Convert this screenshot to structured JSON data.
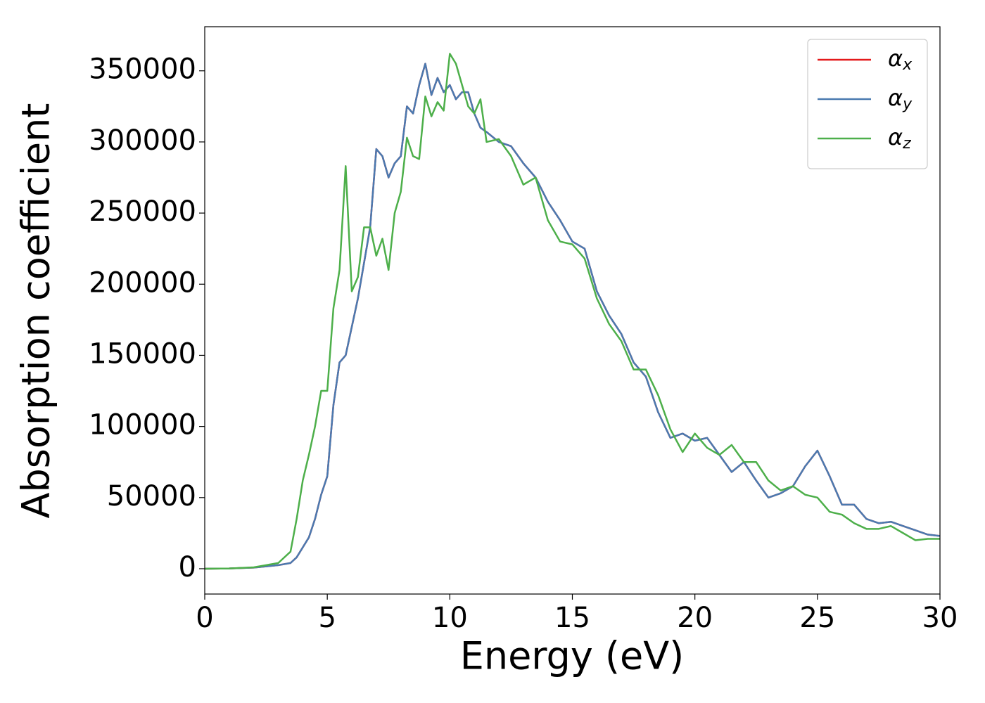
{
  "chart_data": {
    "type": "line",
    "xlabel": "Energy (eV)",
    "ylabel": "Absorption coefficient",
    "x": [
      0,
      1,
      2,
      3,
      3.5,
      3.75,
      4,
      4.25,
      4.5,
      4.75,
      5,
      5.25,
      5.5,
      5.75,
      6,
      6.25,
      6.5,
      6.75,
      7,
      7.25,
      7.5,
      7.75,
      8,
      8.25,
      8.5,
      8.75,
      9,
      9.25,
      9.5,
      9.75,
      10,
      10.25,
      10.5,
      10.75,
      11,
      11.25,
      11.5,
      12,
      12.5,
      13,
      13.5,
      14,
      14.5,
      15,
      15.5,
      16,
      16.5,
      17,
      17.5,
      18,
      18.5,
      19,
      19.5,
      20,
      20.5,
      21,
      21.5,
      22,
      22.5,
      23,
      23.5,
      24,
      24.5,
      25,
      25.5,
      26,
      26.5,
      27,
      27.5,
      28,
      28.5,
      29,
      29.5,
      30
    ],
    "series": [
      {
        "name": "αx",
        "color": "#e41a1c",
        "values": [
          0,
          200,
          800,
          2500,
          4000,
          8000,
          15000,
          22000,
          35000,
          52000,
          65000,
          115000,
          145000,
          150000,
          170000,
          190000,
          215000,
          240000,
          295000,
          290000,
          275000,
          285000,
          290000,
          325000,
          320000,
          340000,
          355000,
          333000,
          345000,
          335000,
          340000,
          330000,
          335000,
          335000,
          320000,
          310000,
          307000,
          300000,
          297000,
          285000,
          275000,
          258000,
          245000,
          230000,
          225000,
          195000,
          178000,
          165000,
          145000,
          135000,
          110000,
          92000,
          95000,
          90000,
          92000,
          80000,
          68000,
          75000,
          62000,
          50000,
          53000,
          58000,
          72000,
          83000,
          65000,
          45000,
          45000,
          35000,
          32000,
          33000,
          30000,
          27000,
          24000,
          23000
        ]
      },
      {
        "name": "αy",
        "color": "#4a7ab0",
        "values": [
          0,
          200,
          800,
          2500,
          4000,
          8000,
          15000,
          22000,
          35000,
          52000,
          65000,
          115000,
          145000,
          150000,
          170000,
          190000,
          215000,
          240000,
          295000,
          290000,
          275000,
          285000,
          290000,
          325000,
          320000,
          340000,
          355000,
          333000,
          345000,
          335000,
          340000,
          330000,
          335000,
          335000,
          320000,
          310000,
          307000,
          300000,
          297000,
          285000,
          275000,
          258000,
          245000,
          230000,
          225000,
          195000,
          178000,
          165000,
          145000,
          135000,
          110000,
          92000,
          95000,
          90000,
          92000,
          80000,
          68000,
          75000,
          62000,
          50000,
          53000,
          58000,
          72000,
          83000,
          65000,
          45000,
          45000,
          35000,
          32000,
          33000,
          30000,
          27000,
          24000,
          23000
        ]
      },
      {
        "name": "αz",
        "color": "#4daf4a",
        "values": [
          0,
          200,
          1000,
          4000,
          12000,
          35000,
          62000,
          80000,
          100000,
          125000,
          125000,
          183000,
          210000,
          283000,
          195000,
          205000,
          240000,
          240000,
          220000,
          232000,
          210000,
          250000,
          265000,
          303000,
          290000,
          288000,
          332000,
          318000,
          328000,
          322000,
          362000,
          355000,
          340000,
          325000,
          320000,
          330000,
          300000,
          302000,
          290000,
          270000,
          275000,
          245000,
          230000,
          228000,
          218000,
          190000,
          172000,
          160000,
          140000,
          140000,
          122000,
          98000,
          82000,
          95000,
          85000,
          80000,
          87000,
          75000,
          75000,
          62000,
          55000,
          58000,
          52000,
          50000,
          40000,
          38000,
          32000,
          28000,
          28000,
          30000,
          25000,
          20000,
          21000,
          21000
        ]
      }
    ],
    "xlim": [
      0,
      30
    ],
    "xticks": [
      0,
      5,
      10,
      15,
      20,
      25,
      30
    ],
    "ylim": [
      -17800,
      381000
    ],
    "yticks": [
      0,
      50000,
      100000,
      150000,
      200000,
      250000,
      300000,
      350000
    ],
    "legend": "upper right",
    "grid": false
  }
}
